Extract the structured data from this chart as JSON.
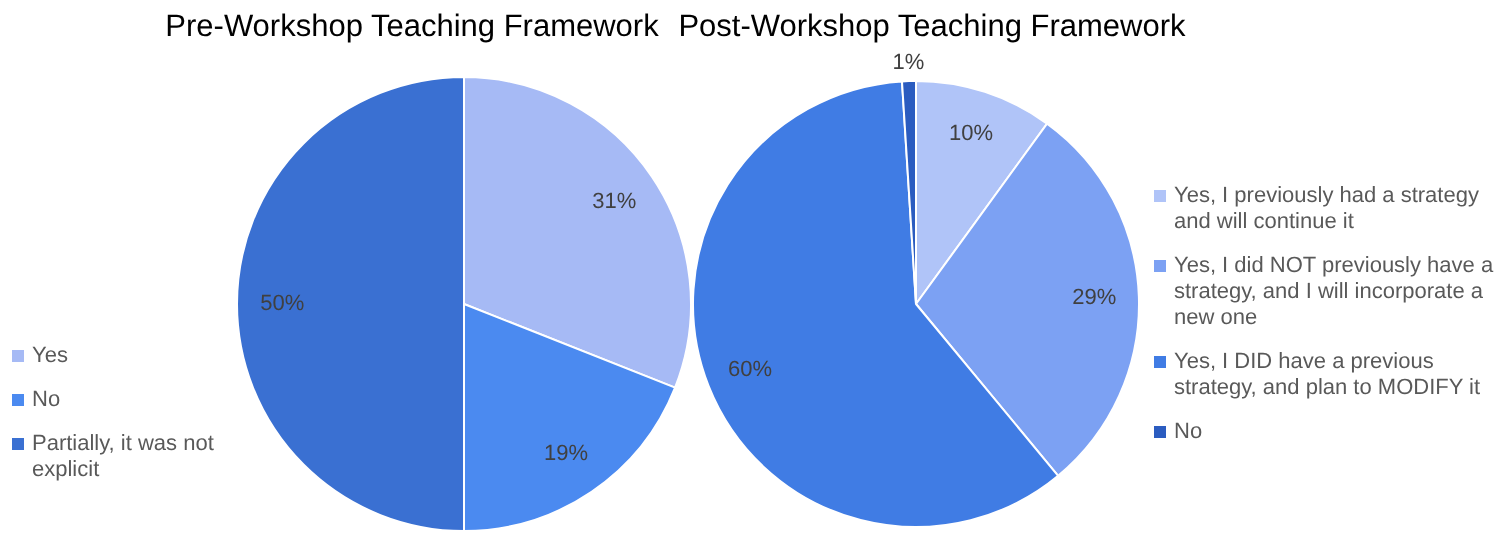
{
  "chart_data": [
    {
      "type": "pie",
      "title": "Pre-Workshop Teaching Framework",
      "categories": [
        "Yes",
        "No",
        "Partially, it was not explicit"
      ],
      "values": [
        31,
        19,
        50
      ],
      "value_labels": [
        "31%",
        "19%",
        "50%"
      ],
      "colors": [
        "#a6baf5",
        "#4b8af0",
        "#3a70d2"
      ],
      "legend": "left"
    },
    {
      "type": "pie",
      "title": "Post-Workshop Teaching Framework",
      "categories": [
        "Yes, I previously had a strategy and will continue it",
        "Yes, I did NOT previously have a strategy, and I will incorporate a new one",
        "Yes, I DID have a previous strategy, and plan to MODIFY it",
        "No"
      ],
      "values": [
        10,
        29,
        60,
        1
      ],
      "value_labels": [
        "10%",
        "29%",
        "60%",
        "1%"
      ],
      "colors": [
        "#b0c4f8",
        "#7ca1f3",
        "#407ce4",
        "#2b5cc0"
      ],
      "legend": "right"
    }
  ]
}
